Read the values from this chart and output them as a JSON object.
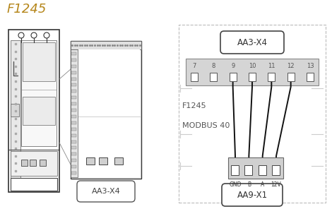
{
  "title": "F1245",
  "title_color": "#b5861a",
  "background_color": "#ffffff",
  "label_aa3x4": "AA3-X4",
  "label_aa9x1": "AA9-X1",
  "label_f1245": "F1245",
  "label_modbus": "MODBUS 40",
  "connector_top_pins": [
    "7",
    "8",
    "9",
    "10",
    "11",
    "12",
    "13"
  ],
  "connector_bot_labels": [
    "GND",
    "B",
    "A",
    "12V"
  ],
  "dashed_color": "#bbbbbb",
  "connector_bg": "#d8d8d8",
  "wire_color": "#111111",
  "text_color": "#444444",
  "pin_wire_indices": [
    2,
    3,
    4,
    5
  ],
  "frame_color": "#444444",
  "light_gray": "#f0f0f0",
  "mid_gray": "#c8c8c8"
}
